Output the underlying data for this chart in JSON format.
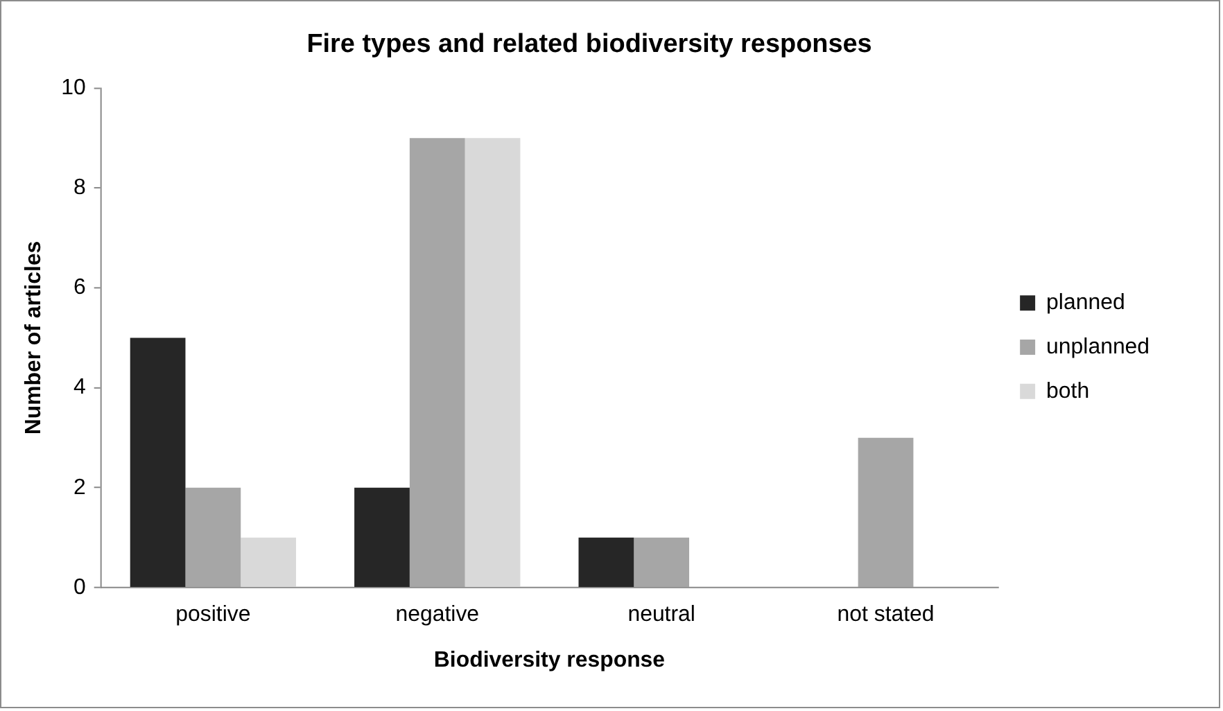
{
  "chart_data": {
    "type": "bar",
    "title": "Fire types and related biodiversity responses",
    "xlabel": "Biodiversity response",
    "ylabel": "Number of articles",
    "categories": [
      "positive",
      "negative",
      "neutral",
      "not stated"
    ],
    "series": [
      {
        "name": "planned",
        "color": "#262626",
        "values": [
          5,
          2,
          1,
          0
        ]
      },
      {
        "name": "unplanned",
        "color": "#a6a6a6",
        "values": [
          2,
          9,
          1,
          3
        ]
      },
      {
        "name": "both",
        "color": "#d9d9d9",
        "values": [
          1,
          9,
          0,
          0
        ]
      }
    ],
    "ylim": [
      0,
      10
    ],
    "yticks": [
      0,
      2,
      4,
      6,
      8,
      10
    ],
    "grid": false,
    "legend": "right"
  }
}
